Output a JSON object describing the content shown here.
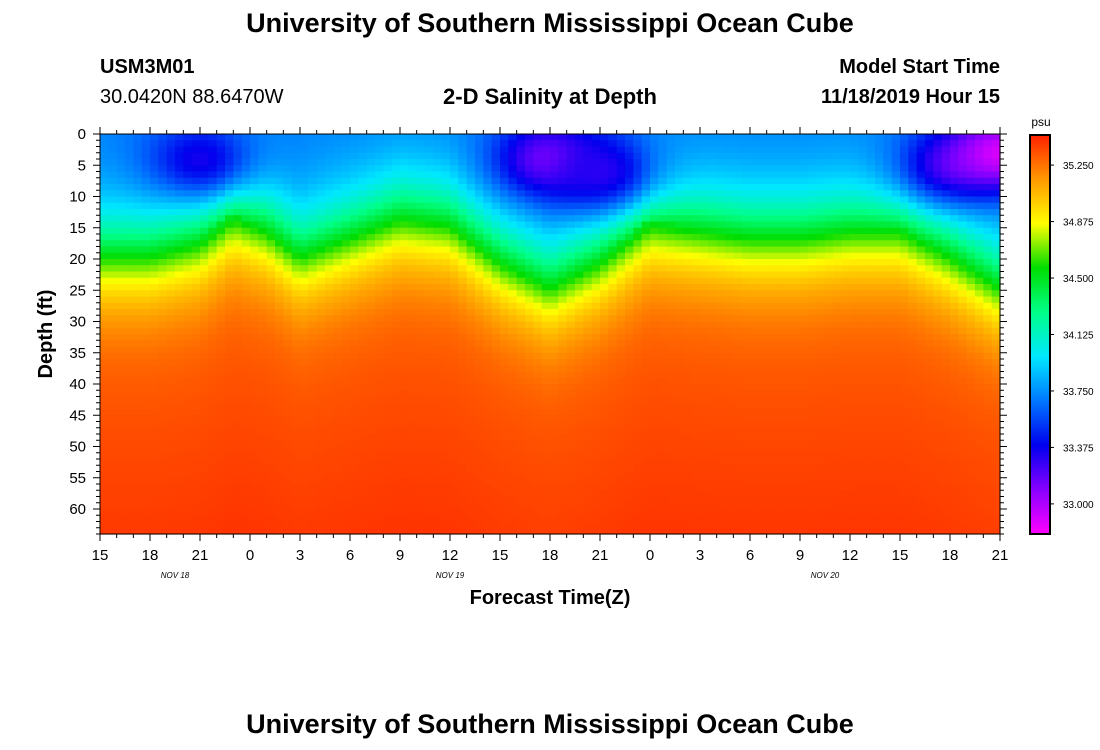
{
  "titles": {
    "top": "University of Southern Mississippi Ocean Cube",
    "bottom": "University of Southern Mississippi Ocean Cube"
  },
  "header": {
    "station_id": "USM3M01",
    "coordinates": "30.0420N 88.6470W",
    "subtitle": "2-D Salinity at Depth",
    "model_start_label": "Model Start Time",
    "model_start_value": "11/18/2019 Hour 15"
  },
  "chart_data": {
    "type": "heatmap",
    "title": "2-D Salinity at Depth",
    "xlabel": "Forecast Time(Z)",
    "ylabel": "Depth (ft)",
    "x_ticks": [
      "15",
      "18",
      "21",
      "0",
      "3",
      "6",
      "9",
      "12",
      "15",
      "18",
      "21",
      "0",
      "3",
      "6",
      "9",
      "12",
      "15",
      "18",
      "21"
    ],
    "x_hours_from_start": [
      0,
      3,
      6,
      9,
      12,
      15,
      18,
      21,
      24,
      27,
      30,
      33,
      36,
      39,
      42,
      45,
      48,
      51,
      54
    ],
    "date_labels": [
      {
        "text": "NOV 18",
        "hour": 4.5
      },
      {
        "text": "NOV 19",
        "hour": 21
      },
      {
        "text": "NOV 20",
        "hour": 43.5
      }
    ],
    "xlim_hours": [
      0,
      54
    ],
    "y_ticks": [
      0,
      5,
      10,
      15,
      20,
      25,
      30,
      35,
      40,
      45,
      50,
      55,
      60
    ],
    "ylim_ft": [
      0,
      64
    ],
    "colorbar": {
      "unit": "psu",
      "ticks": [
        "35.250",
        "34.875",
        "34.500",
        "34.125",
        "33.750",
        "33.375",
        "33.000"
      ],
      "tick_values": [
        35.25,
        34.875,
        34.5,
        34.125,
        33.75,
        33.375,
        33.0
      ],
      "range": [
        32.8,
        35.45
      ],
      "colors": [
        "#ff00ff",
        "#8800ff",
        "#0000ee",
        "#0077ff",
        "#00e8ff",
        "#00ff88",
        "#00dd00",
        "#ffff00",
        "#ff9900",
        "#ff2000"
      ]
    },
    "halocline_depth_ft": [
      {
        "hour": 0,
        "depth": 19
      },
      {
        "hour": 3,
        "depth": 19
      },
      {
        "hour": 6,
        "depth": 17
      },
      {
        "hour": 8,
        "depth": 13
      },
      {
        "hour": 10,
        "depth": 15
      },
      {
        "hour": 12,
        "depth": 19
      },
      {
        "hour": 15,
        "depth": 16
      },
      {
        "hour": 18,
        "depth": 13
      },
      {
        "hour": 21,
        "depth": 14
      },
      {
        "hour": 24,
        "depth": 20
      },
      {
        "hour": 27,
        "depth": 24
      },
      {
        "hour": 30,
        "depth": 20
      },
      {
        "hour": 33,
        "depth": 14
      },
      {
        "hour": 36,
        "depth": 15
      },
      {
        "hour": 39,
        "depth": 16
      },
      {
        "hour": 42,
        "depth": 16
      },
      {
        "hour": 45,
        "depth": 15
      },
      {
        "hour": 48,
        "depth": 15
      },
      {
        "hour": 51,
        "depth": 19
      },
      {
        "hour": 54,
        "depth": 24
      }
    ],
    "fresh_cores": [
      {
        "hour": 6,
        "depth": 4,
        "value": 33.35
      },
      {
        "hour": 27,
        "depth": 4,
        "value": 33.1
      },
      {
        "hour": 30,
        "depth": 6,
        "value": 33.3
      },
      {
        "hour": 51,
        "depth": 5,
        "value": 33.3
      },
      {
        "hour": 54,
        "depth": 3,
        "value": 32.9
      }
    ],
    "bottom_salinity_psu": 35.3
  }
}
